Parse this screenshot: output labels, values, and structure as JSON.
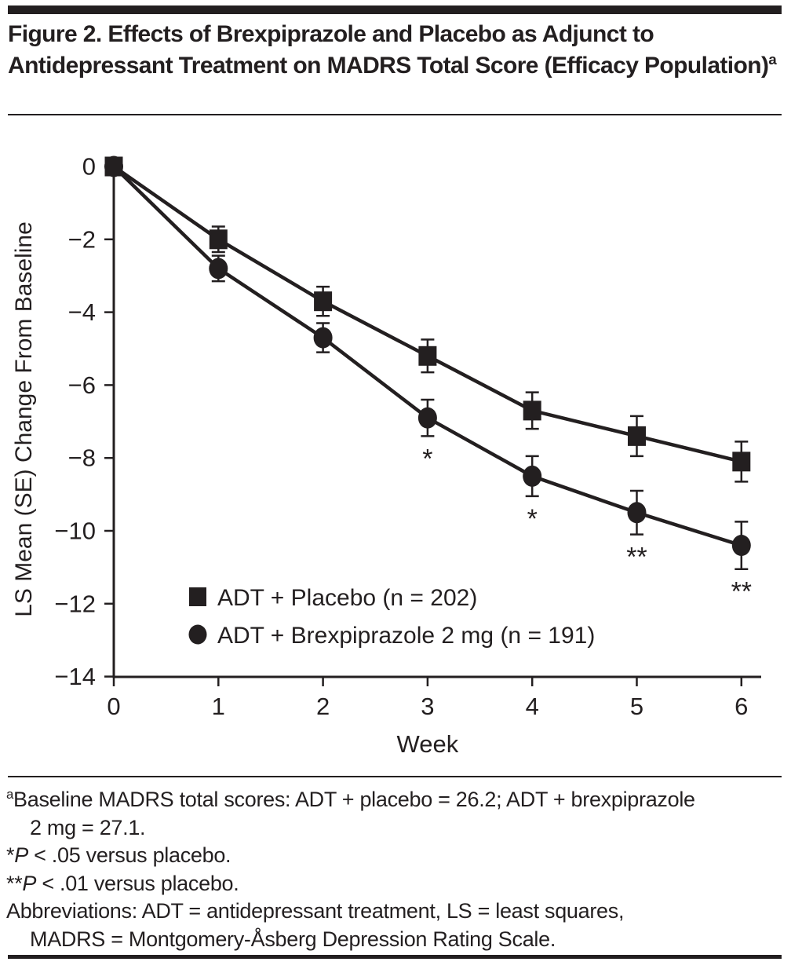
{
  "header": {
    "title": "Figure 2. Effects of Brexpiprazole and Placebo as Adjunct to Antidepressant Treatment on MADRS Total Score (Efficacy Population)",
    "title_superscript": "a"
  },
  "chart_data": {
    "type": "line",
    "title": "",
    "xlabel": "Week",
    "ylabel": "LS Mean (SE) Change From Baseline",
    "x": [
      0,
      1,
      2,
      3,
      4,
      5,
      6
    ],
    "xtick_labels": [
      "0",
      "1",
      "2",
      "3",
      "4",
      "5",
      "6"
    ],
    "yticks": [
      0,
      -2,
      -4,
      -6,
      -8,
      -10,
      -12,
      -14
    ],
    "ytick_labels": [
      "0",
      "−2",
      "−4",
      "−6",
      "−8",
      "−10",
      "−12",
      "−14"
    ],
    "xlim": [
      0,
      6
    ],
    "ylim": [
      -14,
      0
    ],
    "grid": false,
    "legend_position": "inside-lower-left",
    "series": [
      {
        "name": "ADT + Placebo (n = 202)",
        "marker": "square",
        "values": [
          0,
          -2.0,
          -3.7,
          -5.2,
          -6.7,
          -7.4,
          -8.1
        ],
        "se": [
          0,
          0.35,
          0.4,
          0.45,
          0.5,
          0.55,
          0.55
        ],
        "significance": [
          "",
          "",
          "",
          "",
          "",
          "",
          ""
        ]
      },
      {
        "name": "ADT + Brexpiprazole 2 mg (n = 191)",
        "marker": "circle",
        "values": [
          0,
          -2.8,
          -4.7,
          -6.9,
          -8.5,
          -9.5,
          -10.4
        ],
        "se": [
          0,
          0.35,
          0.4,
          0.5,
          0.55,
          0.6,
          0.65
        ],
        "significance": [
          "",
          "",
          "",
          "*",
          "*",
          "**",
          "**"
        ]
      }
    ]
  },
  "footnotes": {
    "baseline": {
      "superscript": "a",
      "line1": "Baseline MADRS total scores: ADT + placebo = 26.2; ADT + brexpiprazole",
      "line2": "2 mg = 27.1."
    },
    "sig_05": {
      "stars": "*",
      "p": "P",
      "text": " < .05 versus placebo."
    },
    "sig_01": {
      "stars": "**",
      "p": "P",
      "text": " < .01 versus placebo."
    },
    "abbreviations": {
      "line1": "Abbreviations: ADT = antidepressant treatment, LS = least squares,",
      "line2": "MADRS = Montgomery-Åsberg Depression Rating Scale."
    }
  },
  "colors": {
    "ink": "#231f20",
    "background": "#ffffff"
  }
}
